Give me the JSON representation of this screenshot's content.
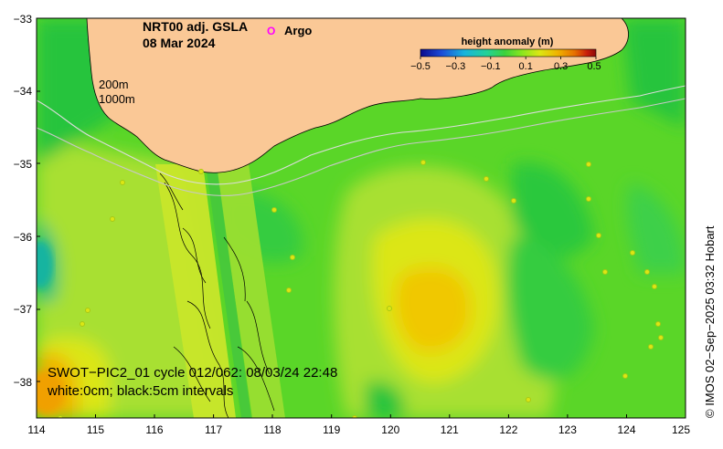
{
  "title": {
    "line1": "NRT00 adj. GSLA",
    "line2": "08 Mar 2024"
  },
  "legend": {
    "argo_symbol": "O",
    "argo_label": "Argo",
    "argo_color": "#ff00ff"
  },
  "depth_contours": {
    "c200": "200m",
    "c1000": "1000m"
  },
  "colorbar": {
    "title": "height anomaly (m)",
    "ticks": [
      "−0.5",
      "−0.3",
      "−0.1",
      "0.1",
      "0.3",
      "0.5"
    ],
    "colors": [
      "#0a0a8c",
      "#1c4cd8",
      "#18b4dc",
      "#24d296",
      "#3cd23c",
      "#8ce61e",
      "#dce614",
      "#f0b400",
      "#e66e00",
      "#c81e0a",
      "#8c0a0a"
    ]
  },
  "axes": {
    "y_ticks": [
      "−33",
      "−34",
      "−35",
      "−36",
      "−37",
      "−38"
    ],
    "x_ticks": [
      "114",
      "115",
      "116",
      "117",
      "118",
      "119",
      "120",
      "121",
      "122",
      "123",
      "124",
      "125"
    ]
  },
  "swot": {
    "line1": "SWOT−PIC2_01 cycle 012/062: 08/03/24 22:48",
    "line2": "white:0cm; black:5cm intervals"
  },
  "credit": "© IMOS 02−Sep−2025 03:32 Hobart",
  "colors": {
    "land": "#fac896",
    "ocean_base": "#5ad628",
    "frame": "#000000"
  }
}
